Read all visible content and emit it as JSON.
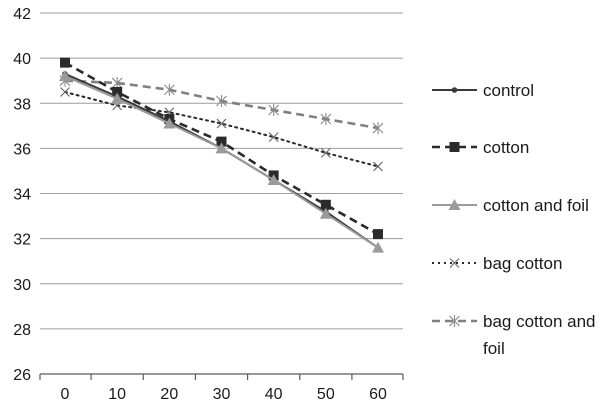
{
  "chart_data": {
    "type": "line",
    "title": "",
    "xlabel": "",
    "ylabel": "",
    "x": [
      0,
      10,
      20,
      30,
      40,
      50,
      60
    ],
    "xlim": [
      0,
      60
    ],
    "ylim": [
      26,
      42
    ],
    "y_ticks": [
      26,
      28,
      30,
      32,
      34,
      36,
      38,
      40,
      42
    ],
    "grid": "horizontal",
    "legend_position": "right",
    "series": [
      {
        "name": "control",
        "values": [
          39.3,
          38.3,
          37.2,
          36.0,
          34.6,
          33.2,
          31.6
        ],
        "color": "#3a3a3a",
        "dash": "solid",
        "marker": "dot"
      },
      {
        "name": "cotton",
        "values": [
          39.8,
          38.5,
          37.3,
          36.3,
          34.8,
          33.5,
          32.2
        ],
        "color": "#2a2a2a",
        "dash": "dash",
        "marker": "square"
      },
      {
        "name": "cotton and foil",
        "values": [
          39.2,
          38.2,
          37.1,
          36.0,
          34.6,
          33.1,
          31.6
        ],
        "color": "#9a9a9a",
        "dash": "solid",
        "marker": "triangle"
      },
      {
        "name": "bag cotton",
        "values": [
          38.5,
          37.9,
          37.6,
          37.1,
          36.5,
          35.8,
          35.2
        ],
        "color": "#2a2a2a",
        "dash": "dot",
        "marker": "x"
      },
      {
        "name": "bag cotton and foil",
        "values": [
          39.0,
          38.9,
          38.6,
          38.1,
          37.7,
          37.3,
          36.9
        ],
        "color": "#808080",
        "dash": "dash",
        "marker": "star"
      }
    ]
  }
}
